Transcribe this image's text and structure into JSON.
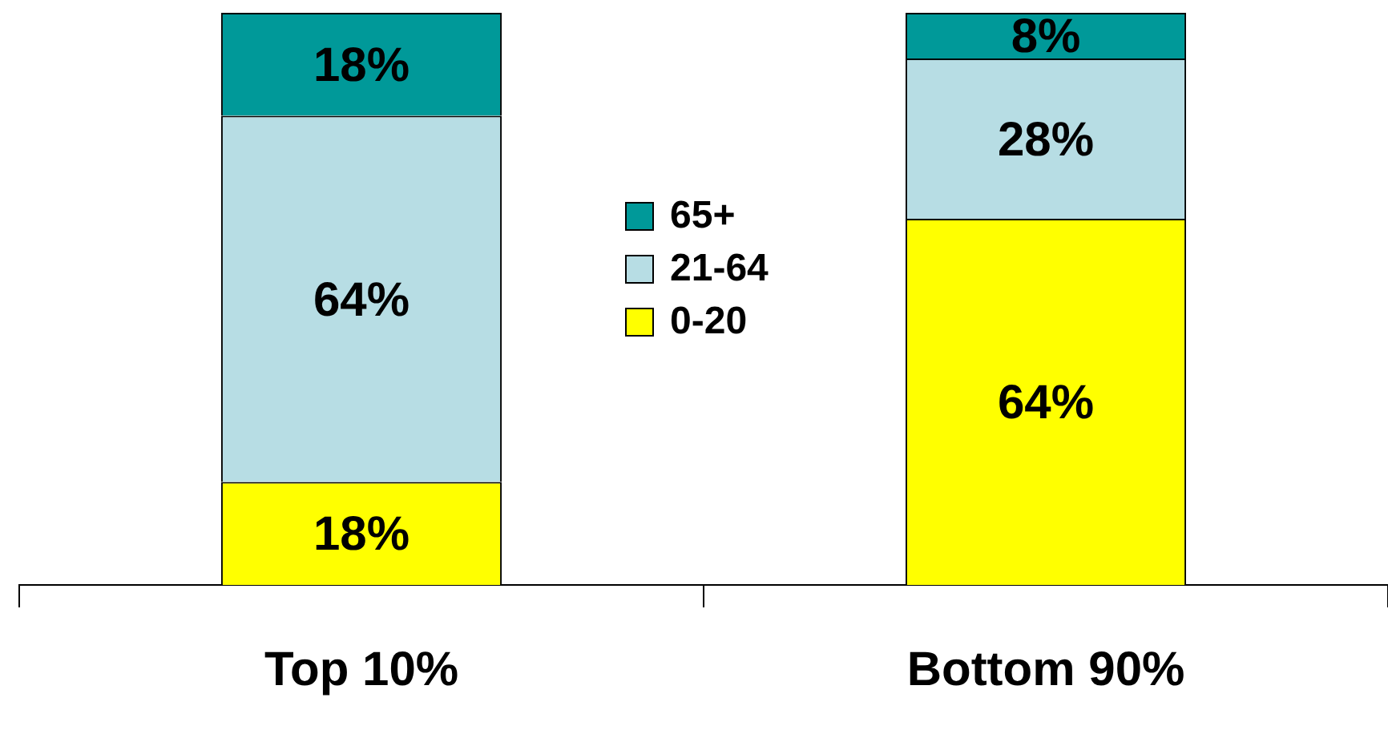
{
  "chart_data": {
    "type": "bar",
    "stacked": true,
    "categories": [
      "Top 10%",
      "Bottom 90%"
    ],
    "series": [
      {
        "name": "0-20",
        "color": "#ffff00",
        "values": [
          18,
          64
        ],
        "value_labels": [
          "18%",
          "64%"
        ]
      },
      {
        "name": "21-64",
        "color": "#b7dde4",
        "values": [
          64,
          28
        ],
        "value_labels": [
          "64%",
          "28%"
        ]
      },
      {
        "name": "65+",
        "color": "#009999",
        "values": [
          18,
          8
        ],
        "value_labels": [
          "18%",
          "8%"
        ]
      }
    ],
    "ylim": [
      0,
      100
    ],
    "tick_labels": "x",
    "legend": "center",
    "grid": false
  }
}
